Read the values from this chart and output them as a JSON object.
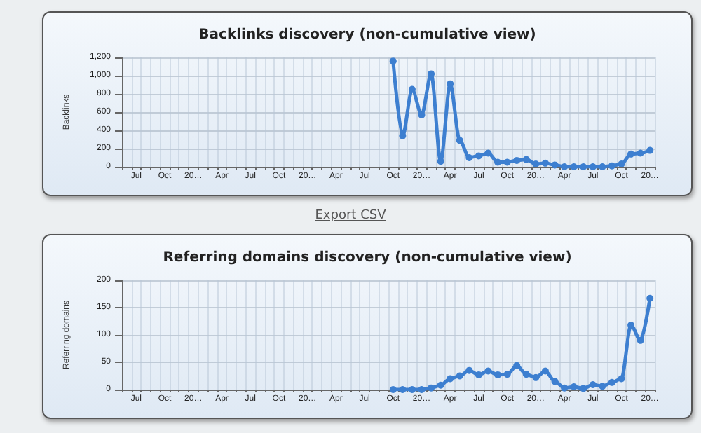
{
  "chart_data": [
    {
      "type": "line",
      "title": "Backlinks discovery (non-cumulative view)",
      "ylabel": "Backlinks",
      "categories": [
        null,
        "Jul",
        null,
        null,
        "Oct",
        null,
        null,
        "20…",
        null,
        null,
        "Apr",
        null,
        null,
        "Jul",
        null,
        null,
        "Oct",
        null,
        null,
        "20…",
        null,
        null,
        "Apr",
        null,
        null,
        "Jul",
        null,
        null,
        "Oct",
        null,
        null,
        "20…",
        null,
        null,
        "Apr",
        null,
        null,
        "Jul",
        null,
        null,
        "Oct",
        null,
        null,
        "20…",
        null,
        null,
        "Apr",
        null,
        null,
        "Jul",
        null,
        null,
        "Oct",
        null,
        null,
        "20…"
      ],
      "series": [
        {
          "color": "#3d7fd0",
          "values": [
            null,
            null,
            null,
            null,
            null,
            null,
            null,
            null,
            null,
            null,
            null,
            null,
            null,
            null,
            null,
            null,
            null,
            null,
            null,
            null,
            null,
            null,
            null,
            null,
            null,
            null,
            null,
            null,
            1160,
            340,
            850,
            570,
            1020,
            60,
            910,
            290,
            100,
            120,
            150,
            50,
            50,
            70,
            80,
            30,
            40,
            20,
            0,
            0,
            0,
            0,
            0,
            10,
            30,
            140,
            150,
            180
          ]
        }
      ],
      "ylim": [
        0,
        1200
      ],
      "yticks": [
        0,
        200,
        400,
        600,
        800,
        {
          "value": 1000,
          "label": "1,000"
        },
        {
          "value": 1200,
          "label": "1,200"
        }
      ],
      "grid": true,
      "marker": "circle",
      "line_style": "solid",
      "annotations": [
        "Export CSV"
      ]
    },
    {
      "type": "line",
      "title": "Referring domains discovery (non-cumulative view)",
      "ylabel": "Referring domains",
      "categories": [
        null,
        "Jul",
        null,
        null,
        "Oct",
        null,
        null,
        "20…",
        null,
        null,
        "Apr",
        null,
        null,
        "Jul",
        null,
        null,
        "Oct",
        null,
        null,
        "20…",
        null,
        null,
        "Apr",
        null,
        null,
        "Jul",
        null,
        null,
        "Oct",
        null,
        null,
        "20…",
        null,
        null,
        "Apr",
        null,
        null,
        "Jul",
        null,
        null,
        "Oct",
        null,
        null,
        "20…",
        null,
        null,
        "Apr",
        null,
        null,
        "Jul",
        null,
        null,
        "Oct",
        null,
        null,
        "20…"
      ],
      "series": [
        {
          "color": "#3d7fd0",
          "values": [
            null,
            null,
            null,
            null,
            null,
            null,
            null,
            null,
            null,
            null,
            null,
            null,
            null,
            null,
            null,
            null,
            null,
            null,
            null,
            null,
            null,
            null,
            null,
            null,
            null,
            null,
            null,
            null,
            0,
            0,
            0,
            0,
            3,
            8,
            20,
            25,
            35,
            27,
            34,
            27,
            28,
            44,
            28,
            22,
            34,
            15,
            3,
            5,
            2,
            9,
            6,
            13,
            20,
            118,
            90,
            167
          ]
        }
      ],
      "ylim": [
        0,
        200
      ],
      "yticks": [
        0,
        50,
        100,
        150,
        200
      ],
      "grid": true,
      "marker": "circle",
      "line_style": "solid"
    }
  ]
}
